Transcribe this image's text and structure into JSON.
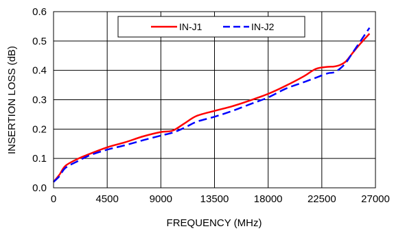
{
  "chart_data": {
    "type": "line",
    "title": "",
    "xlabel": "FREQUENCY (MHz)",
    "ylabel": "INSERTION LOSS (dB)",
    "xlim": [
      0,
      27000
    ],
    "ylim": [
      0,
      0.6
    ],
    "x_ticks": [
      "0",
      "4500",
      "9000",
      "13500",
      "18000",
      "22500",
      "27000"
    ],
    "y_ticks": [
      "0.0",
      "0.1",
      "0.2",
      "0.3",
      "0.4",
      "0.5",
      "0.6"
    ],
    "grid": true,
    "legend_position": "top-center",
    "series": [
      {
        "name": "IN-J1",
        "color": "#ff0000",
        "dash": "solid",
        "x": [
          0,
          500,
          1000,
          2000,
          3000,
          4500,
          6000,
          7500,
          9000,
          10000,
          11000,
          12000,
          13500,
          15000,
          16500,
          18000,
          19500,
          21000,
          22000,
          23000,
          23500,
          24000,
          24500,
          25000,
          25500,
          26000,
          26500
        ],
        "y": [
          0.02,
          0.045,
          0.075,
          0.098,
          0.115,
          0.138,
          0.155,
          0.175,
          0.19,
          0.195,
          0.22,
          0.245,
          0.262,
          0.278,
          0.298,
          0.32,
          0.348,
          0.38,
          0.405,
          0.412,
          0.413,
          0.418,
          0.43,
          0.455,
          0.48,
          0.503,
          0.525
        ]
      },
      {
        "name": "IN-J2",
        "color": "#0000ff",
        "dash": "dashed",
        "x": [
          0,
          500,
          1000,
          2000,
          3000,
          4500,
          6000,
          7500,
          9000,
          10000,
          11000,
          12000,
          13500,
          15000,
          16500,
          18000,
          19500,
          21000,
          22000,
          23000,
          23500,
          24000,
          24500,
          25000,
          25500,
          26000,
          26500
        ],
        "y": [
          0.02,
          0.04,
          0.068,
          0.09,
          0.11,
          0.13,
          0.145,
          0.162,
          0.178,
          0.188,
          0.205,
          0.225,
          0.242,
          0.262,
          0.285,
          0.308,
          0.338,
          0.36,
          0.375,
          0.39,
          0.393,
          0.405,
          0.425,
          0.455,
          0.485,
          0.515,
          0.545
        ]
      }
    ]
  }
}
